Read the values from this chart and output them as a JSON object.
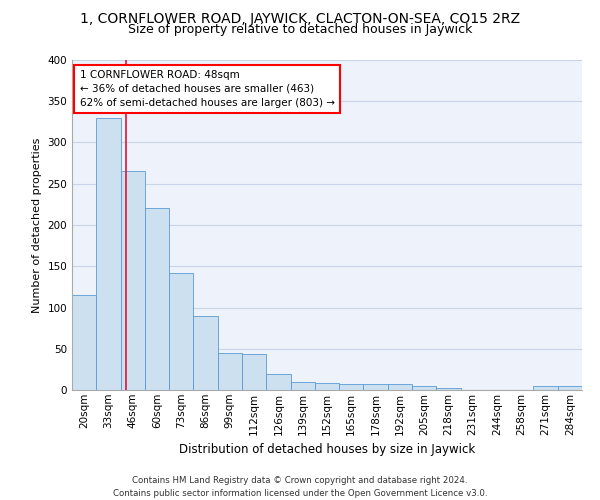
{
  "title": "1, CORNFLOWER ROAD, JAYWICK, CLACTON-ON-SEA, CO15 2RZ",
  "subtitle": "Size of property relative to detached houses in Jaywick",
  "xlabel": "Distribution of detached houses by size in Jaywick",
  "ylabel": "Number of detached properties",
  "footer_line1": "Contains HM Land Registry data © Crown copyright and database right 2024.",
  "footer_line2": "Contains public sector information licensed under the Open Government Licence v3.0.",
  "categories": [
    "20sqm",
    "33sqm",
    "46sqm",
    "60sqm",
    "73sqm",
    "86sqm",
    "99sqm",
    "112sqm",
    "126sqm",
    "139sqm",
    "152sqm",
    "165sqm",
    "178sqm",
    "192sqm",
    "205sqm",
    "218sqm",
    "231sqm",
    "244sqm",
    "258sqm",
    "271sqm",
    "284sqm"
  ],
  "values": [
    115,
    330,
    265,
    220,
    142,
    90,
    45,
    44,
    20,
    10,
    8,
    7,
    7,
    7,
    5,
    3,
    0,
    0,
    0,
    5,
    5
  ],
  "bar_color": "#cce0f0",
  "bar_edge_color": "#5b9bd5",
  "red_line_x": 1.72,
  "annotation_text_line1": "1 CORNFLOWER ROAD: 48sqm",
  "annotation_text_line2": "← 36% of detached houses are smaller (463)",
  "annotation_text_line3": "62% of semi-detached houses are larger (803) →",
  "ylim": [
    0,
    400
  ],
  "yticks": [
    0,
    50,
    100,
    150,
    200,
    250,
    300,
    350,
    400
  ],
  "bg_color": "#eef2fa",
  "grid_color": "#c8d4e8",
  "title_fontsize": 10,
  "subtitle_fontsize": 9,
  "axis_label_fontsize": 8.5,
  "tick_fontsize": 7.5,
  "annotation_fontsize": 7.5,
  "ylabel_fontsize": 8
}
